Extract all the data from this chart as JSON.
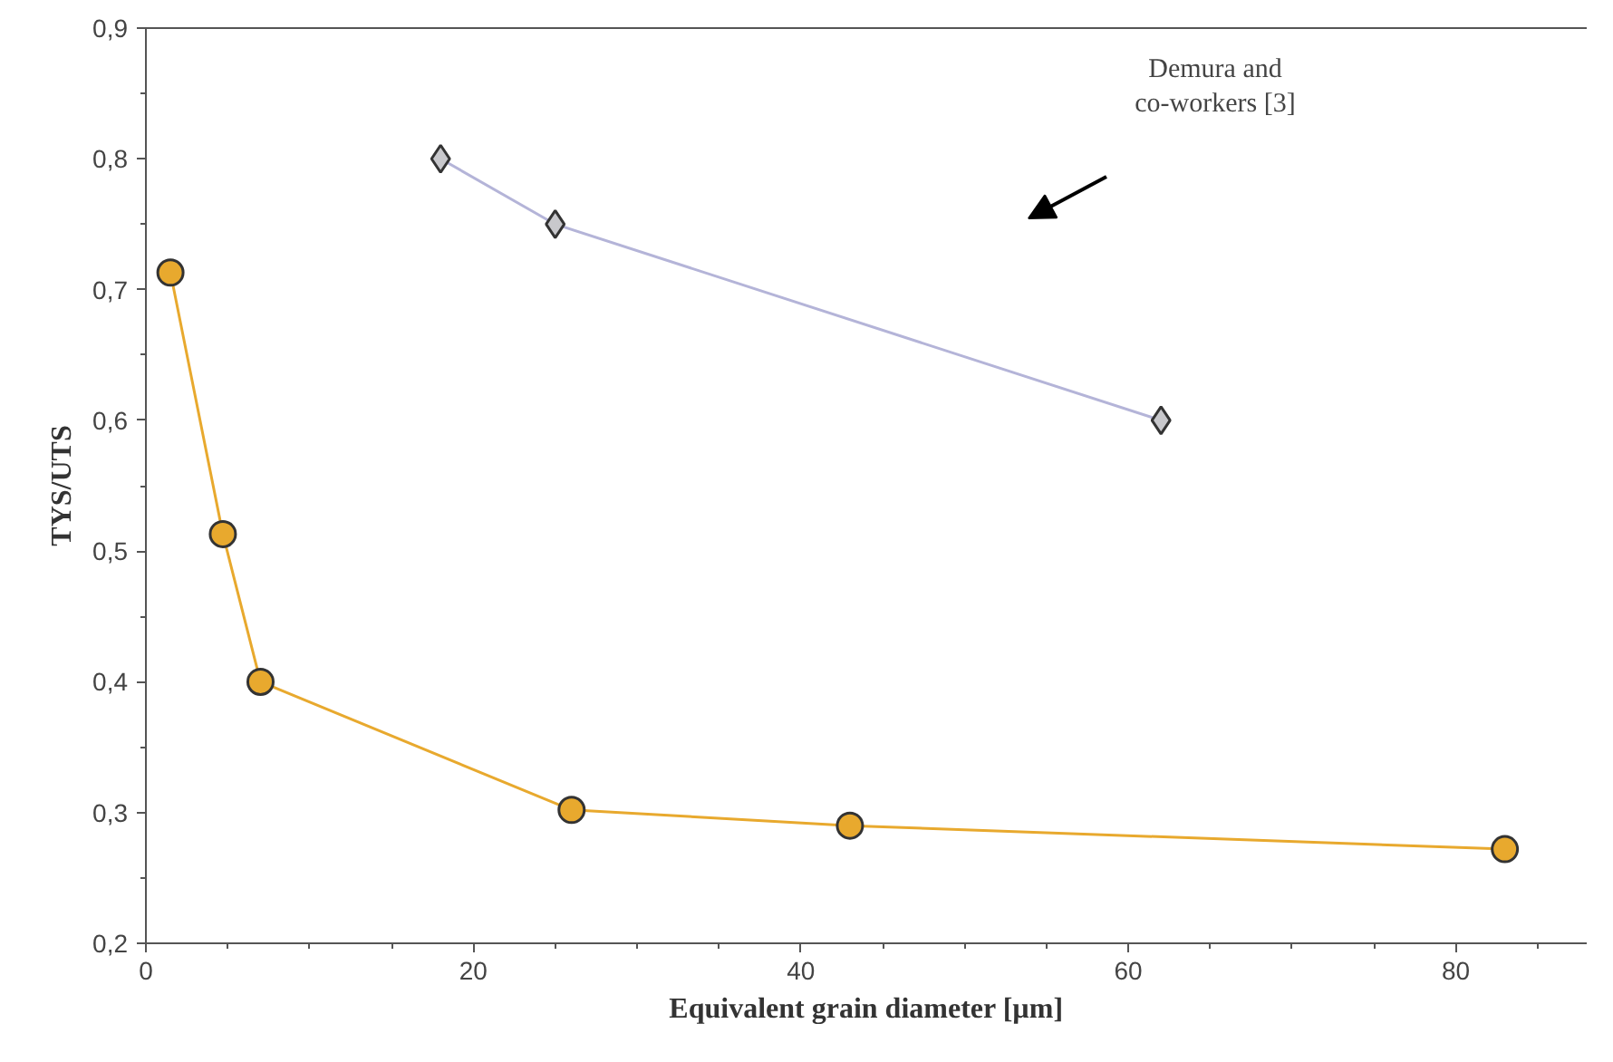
{
  "chart_data": {
    "type": "line",
    "xlabel": "Equivalent grain diameter [µm]",
    "ylabel": "TYS/UTS",
    "xlim": [
      0,
      88
    ],
    "xticks": [
      0,
      20,
      40,
      60,
      80
    ],
    "ylim": [
      0.2,
      0.9
    ],
    "yticks": [
      {
        "value": 0.2,
        "label": "0,2"
      },
      {
        "value": 0.3,
        "label": "0,3"
      },
      {
        "value": 0.4,
        "label": "0,4"
      },
      {
        "value": 0.5,
        "label": "0,5"
      },
      {
        "value": 0.6,
        "label": "0,6"
      },
      {
        "value": 0.7,
        "label": "0,7"
      },
      {
        "value": 0.8,
        "label": "0,8"
      },
      {
        "value": 0.9,
        "label": "0,9"
      }
    ],
    "grid": false,
    "series": [
      {
        "color": "#e8a92e",
        "marker": "circle",
        "x": [
          1.5,
          4.7,
          7,
          26,
          43,
          83
        ],
        "values": [
          0.713,
          0.513,
          0.4,
          0.302,
          0.29,
          0.272
        ]
      },
      {
        "color": "#b4b4d8",
        "marker": "diamond",
        "x": [
          18,
          25,
          62
        ],
        "values": [
          0.8,
          0.75,
          0.6
        ]
      }
    ],
    "annotations": [
      "Demura and\nco-workers [3]"
    ]
  }
}
